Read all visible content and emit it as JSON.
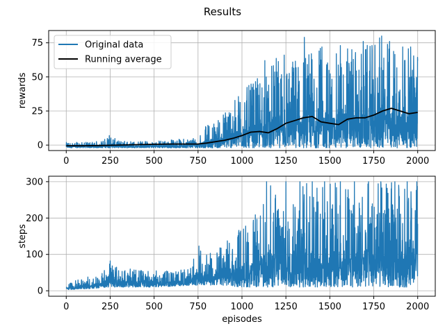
{
  "figure": {
    "title": "Results"
  },
  "colors": {
    "original": "#1f77b4",
    "running_average": "#000000",
    "grid": "#b0b0b0"
  },
  "chart_data": [
    {
      "type": "line",
      "title": "",
      "xlabel": "",
      "ylabel": "rewards",
      "xlim": [
        -100,
        2100
      ],
      "ylim": [
        -4,
        84
      ],
      "xticks": [
        0,
        250,
        500,
        750,
        1000,
        1250,
        1500,
        1750,
        2000
      ],
      "yticks": [
        0,
        25,
        50,
        75
      ],
      "grid": true,
      "legend": {
        "placement": "upper-left",
        "entries": [
          "Original data",
          "Running average"
        ]
      },
      "series": [
        {
          "name": "Original data",
          "style": "noisy-envelope",
          "x": [
            0,
            100,
            200,
            250,
            300,
            400,
            500,
            600,
            700,
            750,
            800,
            850,
            900,
            950,
            1000,
            1050,
            1100,
            1150,
            1200,
            1250,
            1300,
            1350,
            1400,
            1450,
            1500,
            1550,
            1600,
            1650,
            1700,
            1750,
            1800,
            1850,
            1900,
            1950,
            2000
          ],
          "low": [
            -2,
            -2,
            -2,
            -2,
            -2,
            -2,
            -2,
            -2,
            -2,
            -2,
            -2,
            -2,
            -2,
            -2,
            -2,
            -2,
            -2,
            -2,
            -2,
            -2,
            -2,
            -2,
            -2,
            -2,
            -2,
            -2,
            -2,
            -2,
            -2,
            -2,
            -2,
            -2,
            -2,
            -2,
            -2
          ],
          "high": [
            2,
            2,
            3,
            7,
            3,
            3,
            3,
            4,
            5,
            7,
            15,
            18,
            25,
            35,
            40,
            45,
            50,
            55,
            65,
            60,
            65,
            70,
            70,
            72,
            60,
            70,
            75,
            68,
            72,
            78,
            80,
            75,
            72,
            72,
            70
          ],
          "peaks": [
            [
              245,
              7
            ],
            [
              1130,
              62
            ],
            [
              1240,
              66
            ],
            [
              1320,
              57
            ],
            [
              1355,
              79
            ],
            [
              1455,
              72
            ],
            [
              1560,
              73
            ],
            [
              1625,
              70
            ],
            [
              1690,
              76
            ],
            [
              1740,
              73
            ],
            [
              1795,
              80
            ],
            [
              1840,
              76
            ],
            [
              1915,
              72
            ],
            [
              1960,
              72
            ]
          ]
        },
        {
          "name": "Running average",
          "x": [
            0,
            100,
            200,
            300,
            400,
            500,
            600,
            700,
            750,
            800,
            850,
            900,
            950,
            1000,
            1050,
            1100,
            1150,
            1200,
            1250,
            1300,
            1350,
            1400,
            1450,
            1500,
            1550,
            1600,
            1650,
            1700,
            1750,
            1800,
            1850,
            1900,
            1950,
            2000
          ],
          "y": [
            -0.5,
            -0.5,
            -0.3,
            0,
            0.3,
            0.6,
            0.8,
            0.8,
            0.8,
            1.5,
            2.5,
            3.5,
            5,
            7,
            9.5,
            10,
            9,
            12,
            16,
            18,
            20,
            21,
            17,
            16,
            15,
            19,
            20,
            20,
            22,
            25,
            27,
            25,
            23,
            24
          ]
        }
      ]
    },
    {
      "type": "line",
      "title": "",
      "xlabel": "episodes",
      "ylabel": "steps",
      "xlim": [
        -100,
        2100
      ],
      "ylim": [
        -15,
        315
      ],
      "xticks": [
        0,
        250,
        500,
        750,
        1000,
        1250,
        1500,
        1750,
        2000
      ],
      "yticks": [
        0,
        100,
        200,
        300
      ],
      "grid": true,
      "series": [
        {
          "name": "",
          "style": "noisy-envelope",
          "x": [
            0,
            100,
            200,
            250,
            300,
            400,
            500,
            600,
            700,
            750,
            800,
            850,
            900,
            950,
            1000,
            1050,
            1100,
            1150,
            1200,
            1250,
            1300,
            1350,
            1400,
            1450,
            1500,
            1550,
            1600,
            1650,
            1700,
            1750,
            1800,
            1850,
            1900,
            1950,
            2000
          ],
          "low": [
            3,
            5,
            8,
            10,
            10,
            10,
            10,
            12,
            15,
            15,
            15,
            15,
            15,
            12,
            10,
            10,
            10,
            10,
            10,
            10,
            10,
            10,
            10,
            10,
            10,
            10,
            10,
            10,
            10,
            10,
            10,
            10,
            10,
            10,
            25
          ],
          "high": [
            20,
            35,
            50,
            80,
            60,
            60,
            55,
            55,
            60,
            120,
            100,
            110,
            130,
            160,
            180,
            200,
            220,
            300,
            270,
            280,
            300,
            300,
            300,
            300,
            300,
            300,
            300,
            300,
            300,
            300,
            300,
            300,
            300,
            300,
            300
          ],
          "peaks": [
            [
              250,
              82
            ],
            [
              755,
              123
            ],
            [
              1140,
              300
            ],
            [
              1250,
              300
            ],
            [
              1330,
              300
            ],
            [
              1400,
              300
            ],
            [
              1470,
              300
            ],
            [
              1560,
              300
            ],
            [
              1640,
              300
            ],
            [
              1720,
              300
            ],
            [
              1790,
              300
            ],
            [
              1870,
              300
            ],
            [
              1940,
              300
            ],
            [
              1995,
              300
            ]
          ]
        }
      ]
    }
  ]
}
